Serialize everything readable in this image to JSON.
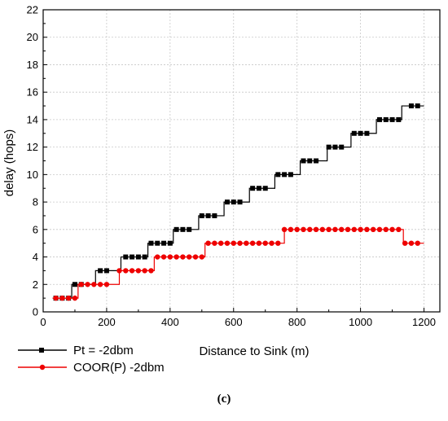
{
  "chart_data": {
    "type": "line",
    "xlabel": "Distance to Sink (m)",
    "ylabel": "delay (hops)",
    "xlim": [
      0,
      1250
    ],
    "ylim": [
      0,
      22
    ],
    "xticks": [
      0,
      200,
      400,
      600,
      800,
      1000,
      1200
    ],
    "yticks": [
      0,
      2,
      4,
      6,
      8,
      10,
      12,
      14,
      16,
      18,
      20,
      22
    ],
    "grid": true,
    "legend_position": "below-left",
    "series": [
      {
        "name": "Pt = -2dbm",
        "color": "#000000",
        "marker": "square",
        "step_edges": [
          30,
          90,
          165,
          245,
          330,
          410,
          490,
          570,
          650,
          730,
          810,
          895,
          970,
          1050,
          1130,
          1200
        ],
        "step_values": [
          1,
          2,
          3,
          4,
          5,
          6,
          7,
          8,
          9,
          10,
          11,
          12,
          13,
          14,
          15
        ],
        "x": [
          40,
          60,
          80,
          100,
          120,
          180,
          200,
          260,
          280,
          300,
          320,
          340,
          360,
          380,
          400,
          420,
          440,
          460,
          500,
          520,
          540,
          580,
          600,
          620,
          660,
          680,
          700,
          740,
          760,
          780,
          820,
          840,
          860,
          900,
          920,
          940,
          980,
          1000,
          1020,
          1060,
          1080,
          1100,
          1120,
          1160,
          1180
        ],
        "y": [
          1,
          1,
          1,
          2,
          2,
          3,
          3,
          4,
          4,
          4,
          4,
          5,
          5,
          5,
          5,
          6,
          6,
          6,
          7,
          7,
          7,
          8,
          8,
          8,
          9,
          9,
          9,
          10,
          10,
          10,
          11,
          11,
          11,
          12,
          12,
          12,
          13,
          13,
          13,
          14,
          14,
          14,
          14,
          15,
          15
        ]
      },
      {
        "name": "COOR(P) -2dbm",
        "color": "#ee0000",
        "marker": "circle",
        "step_edges": [
          30,
          110,
          240,
          350,
          510,
          760,
          1135,
          1200
        ],
        "step_values": [
          1,
          2,
          3,
          4,
          5,
          6,
          5
        ],
        "x": [
          40,
          60,
          80,
          100,
          120,
          140,
          160,
          180,
          200,
          240,
          260,
          280,
          300,
          320,
          340,
          360,
          380,
          400,
          420,
          440,
          460,
          480,
          500,
          520,
          540,
          560,
          580,
          600,
          620,
          640,
          660,
          680,
          700,
          720,
          740,
          760,
          780,
          800,
          820,
          840,
          860,
          880,
          900,
          920,
          940,
          960,
          980,
          1000,
          1020,
          1040,
          1060,
          1080,
          1100,
          1120,
          1140,
          1160,
          1180
        ],
        "y": [
          1,
          1,
          1,
          1,
          2,
          2,
          2,
          2,
          2,
          3,
          3,
          3,
          3,
          3,
          3,
          4,
          4,
          4,
          4,
          4,
          4,
          4,
          4,
          5,
          5,
          5,
          5,
          5,
          5,
          5,
          5,
          5,
          5,
          5,
          5,
          6,
          6,
          6,
          6,
          6,
          6,
          6,
          6,
          6,
          6,
          6,
          6,
          6,
          6,
          6,
          6,
          6,
          6,
          6,
          5,
          5,
          5
        ]
      }
    ]
  },
  "caption": "(c)"
}
